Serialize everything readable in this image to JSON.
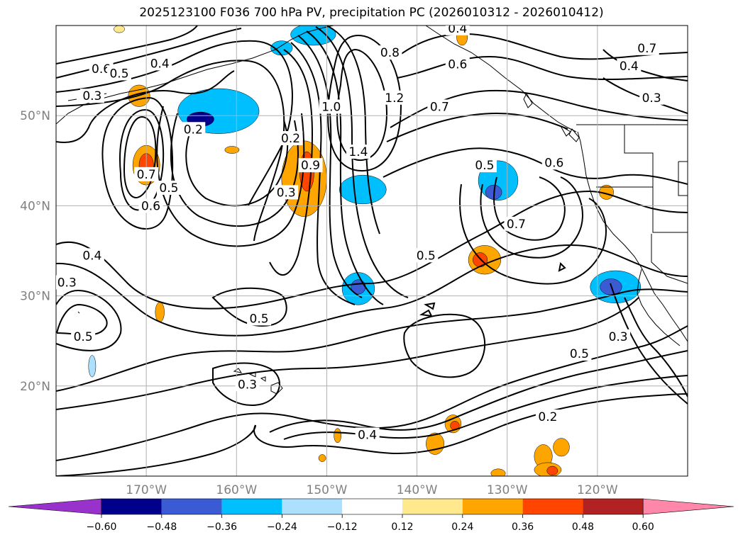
{
  "title": "2025123100 F036 700 hPa PV, precipitation PC (2026010312 - 2026010412)",
  "map": {
    "lon_range": [
      -180,
      -110
    ],
    "lat_range": [
      10,
      60
    ],
    "lon_ticks": [
      {
        "value": -170,
        "label": "170°W"
      },
      {
        "value": -160,
        "label": "160°W"
      },
      {
        "value": -150,
        "label": "150°W"
      },
      {
        "value": -140,
        "label": "140°W"
      },
      {
        "value": -130,
        "label": "130°W"
      },
      {
        "value": -120,
        "label": "120°W"
      }
    ],
    "lat_ticks": [
      {
        "value": 20,
        "label": "20°N"
      },
      {
        "value": 30,
        "label": "30°N"
      },
      {
        "value": 40,
        "label": "40°N"
      },
      {
        "value": 50,
        "label": "50°N"
      }
    ],
    "grid": true,
    "tick_label_color": "#808080"
  },
  "contour_labels": [
    {
      "text": "0.6",
      "lon": -175,
      "lat": 55.2
    },
    {
      "text": "0.5",
      "lon": -173,
      "lat": 54.7
    },
    {
      "text": "0.4",
      "lon": -168.5,
      "lat": 55.8
    },
    {
      "text": "0.3",
      "lon": -176,
      "lat": 52.2
    },
    {
      "text": "0.2",
      "lon": -164.8,
      "lat": 48.5
    },
    {
      "text": "0.7",
      "lon": -170,
      "lat": 43.5
    },
    {
      "text": "0.5",
      "lon": -167.5,
      "lat": 42
    },
    {
      "text": "0.6",
      "lon": -169.5,
      "lat": 40
    },
    {
      "text": "0.2",
      "lon": -154,
      "lat": 47.5
    },
    {
      "text": "0.9",
      "lon": -151.8,
      "lat": 44.5
    },
    {
      "text": "0.3",
      "lon": -154.5,
      "lat": 41.5
    },
    {
      "text": "1.0",
      "lon": -149.5,
      "lat": 51
    },
    {
      "text": "0.8",
      "lon": -143,
      "lat": 57
    },
    {
      "text": "1.2",
      "lon": -142.5,
      "lat": 52
    },
    {
      "text": "1.4",
      "lon": -146.5,
      "lat": 46
    },
    {
      "text": "0.7",
      "lon": -137.5,
      "lat": 51
    },
    {
      "text": "0.4",
      "lon": -135.5,
      "lat": 59.7
    },
    {
      "text": "0.6",
      "lon": -135.5,
      "lat": 55.7
    },
    {
      "text": "0.7",
      "lon": -114.5,
      "lat": 57.5
    },
    {
      "text": "0.4",
      "lon": -116.5,
      "lat": 55.5
    },
    {
      "text": "0.3",
      "lon": -114,
      "lat": 52
    },
    {
      "text": "0.5",
      "lon": -132.5,
      "lat": 44.5
    },
    {
      "text": "0.6",
      "lon": -124.8,
      "lat": 44.8
    },
    {
      "text": "0.7",
      "lon": -129,
      "lat": 38
    },
    {
      "text": "0.5",
      "lon": -139,
      "lat": 34.5
    },
    {
      "text": "0.4",
      "lon": -176,
      "lat": 34.5
    },
    {
      "text": "0.3",
      "lon": -178.8,
      "lat": 31.5
    },
    {
      "text": "0.5",
      "lon": -157.5,
      "lat": 27.5
    },
    {
      "text": "0.5",
      "lon": -177,
      "lat": 25.5
    },
    {
      "text": "0.3",
      "lon": -158.8,
      "lat": 20.2
    },
    {
      "text": "0.4",
      "lon": -145.5,
      "lat": 14.6
    },
    {
      "text": "0.2",
      "lon": -125.5,
      "lat": 16.6
    },
    {
      "text": "0.5",
      "lon": -122,
      "lat": 23.6
    },
    {
      "text": "0.3",
      "lon": -117.7,
      "lat": 25.5
    }
  ],
  "colorbar": {
    "colors": [
      "#9932CC",
      "#00008B",
      "#3A5BD4",
      "#00BFFF",
      "#ADDFFF",
      "#FFFFFF",
      "#FFE98C",
      "#FFA500",
      "#FF4500",
      "#B22222",
      "#FF88AA"
    ],
    "ticks": [
      "−0.60",
      "−0.48",
      "−0.36",
      "−0.24",
      "−0.12",
      "0.12",
      "0.24",
      "0.36",
      "0.48",
      "0.60"
    ]
  },
  "precip_blobs": [
    {
      "lon": -162,
      "lat": 50.5,
      "rx": 4.5,
      "ry": 2.5,
      "level": 3
    },
    {
      "lon": -164,
      "lat": 49.6,
      "rx": 1.5,
      "ry": 0.8,
      "level": 1
    },
    {
      "lon": -146,
      "lat": 41.8,
      "rx": 2.6,
      "ry": 1.6,
      "level": 3
    },
    {
      "lon": -131,
      "lat": 42.8,
      "rx": 2.2,
      "ry": 2.2,
      "level": 3
    },
    {
      "lon": -131.5,
      "lat": 41.5,
      "rx": 0.9,
      "ry": 0.8,
      "level": 2
    },
    {
      "lon": -118,
      "lat": 31,
      "rx": 2.8,
      "ry": 1.8,
      "level": 3
    },
    {
      "lon": -118.5,
      "lat": 31,
      "rx": 1.2,
      "ry": 0.9,
      "level": 2
    },
    {
      "lon": -146.5,
      "lat": 30.8,
      "rx": 1.8,
      "ry": 1.8,
      "level": 3
    },
    {
      "lon": -146.5,
      "lat": 31,
      "rx": 0.8,
      "ry": 0.8,
      "level": 2
    },
    {
      "lon": -151.5,
      "lat": 59,
      "rx": 2.5,
      "ry": 1.2,
      "level": 3
    },
    {
      "lon": -155,
      "lat": 57.5,
      "rx": 1.2,
      "ry": 0.8,
      "level": 3
    },
    {
      "lon": -176,
      "lat": 22.2,
      "rx": 0.4,
      "ry": 1.2,
      "level": 4
    },
    {
      "lon": -152.5,
      "lat": 43,
      "rx": 2.5,
      "ry": 4.2,
      "level": 7
    },
    {
      "lon": -152.2,
      "lat": 43.8,
      "rx": 0.8,
      "ry": 2.2,
      "level": 8
    },
    {
      "lon": -170,
      "lat": 44.5,
      "rx": 1.5,
      "ry": 2.2,
      "level": 7
    },
    {
      "lon": -170,
      "lat": 44.5,
      "rx": 0.8,
      "ry": 1.3,
      "level": 8
    },
    {
      "lon": -170.8,
      "lat": 52.2,
      "rx": 1.2,
      "ry": 1.2,
      "level": 7
    },
    {
      "lon": -132.5,
      "lat": 34,
      "rx": 1.8,
      "ry": 1.6,
      "level": 7
    },
    {
      "lon": -133,
      "lat": 34,
      "rx": 0.8,
      "ry": 0.8,
      "level": 8
    },
    {
      "lon": -119,
      "lat": 41.5,
      "rx": 0.8,
      "ry": 0.8,
      "level": 7
    },
    {
      "lon": -138,
      "lat": 13.6,
      "rx": 1.0,
      "ry": 1.2,
      "level": 7
    },
    {
      "lon": -136,
      "lat": 15.8,
      "rx": 0.9,
      "ry": 1.0,
      "level": 7
    },
    {
      "lon": -135.8,
      "lat": 15.6,
      "rx": 0.5,
      "ry": 0.5,
      "level": 8
    },
    {
      "lon": -126,
      "lat": 12.2,
      "rx": 1.0,
      "ry": 1.3,
      "level": 7
    },
    {
      "lon": -124,
      "lat": 13.2,
      "rx": 0.9,
      "ry": 1.0,
      "level": 7
    },
    {
      "lon": -125.5,
      "lat": 10.7,
      "rx": 1.5,
      "ry": 0.8,
      "level": 7
    },
    {
      "lon": -125,
      "lat": 10.6,
      "rx": 0.6,
      "ry": 0.5,
      "level": 8
    },
    {
      "lon": -131,
      "lat": 10.3,
      "rx": 0.8,
      "ry": 0.5,
      "level": 7
    },
    {
      "lon": -148.8,
      "lat": 14.5,
      "rx": 0.4,
      "ry": 0.8,
      "level": 7
    },
    {
      "lon": -150.5,
      "lat": 12,
      "rx": 0.4,
      "ry": 0.4,
      "level": 7
    },
    {
      "lon": -168.5,
      "lat": 28.2,
      "rx": 0.5,
      "ry": 1.1,
      "level": 7
    },
    {
      "lon": -160.5,
      "lat": 46.2,
      "rx": 0.8,
      "ry": 0.4,
      "level": 7
    },
    {
      "lon": -135,
      "lat": 58.7,
      "rx": 0.6,
      "ry": 0.9,
      "level": 7
    },
    {
      "lon": -173,
      "lat": 59.6,
      "rx": 0.6,
      "ry": 0.4,
      "level": 6
    }
  ]
}
